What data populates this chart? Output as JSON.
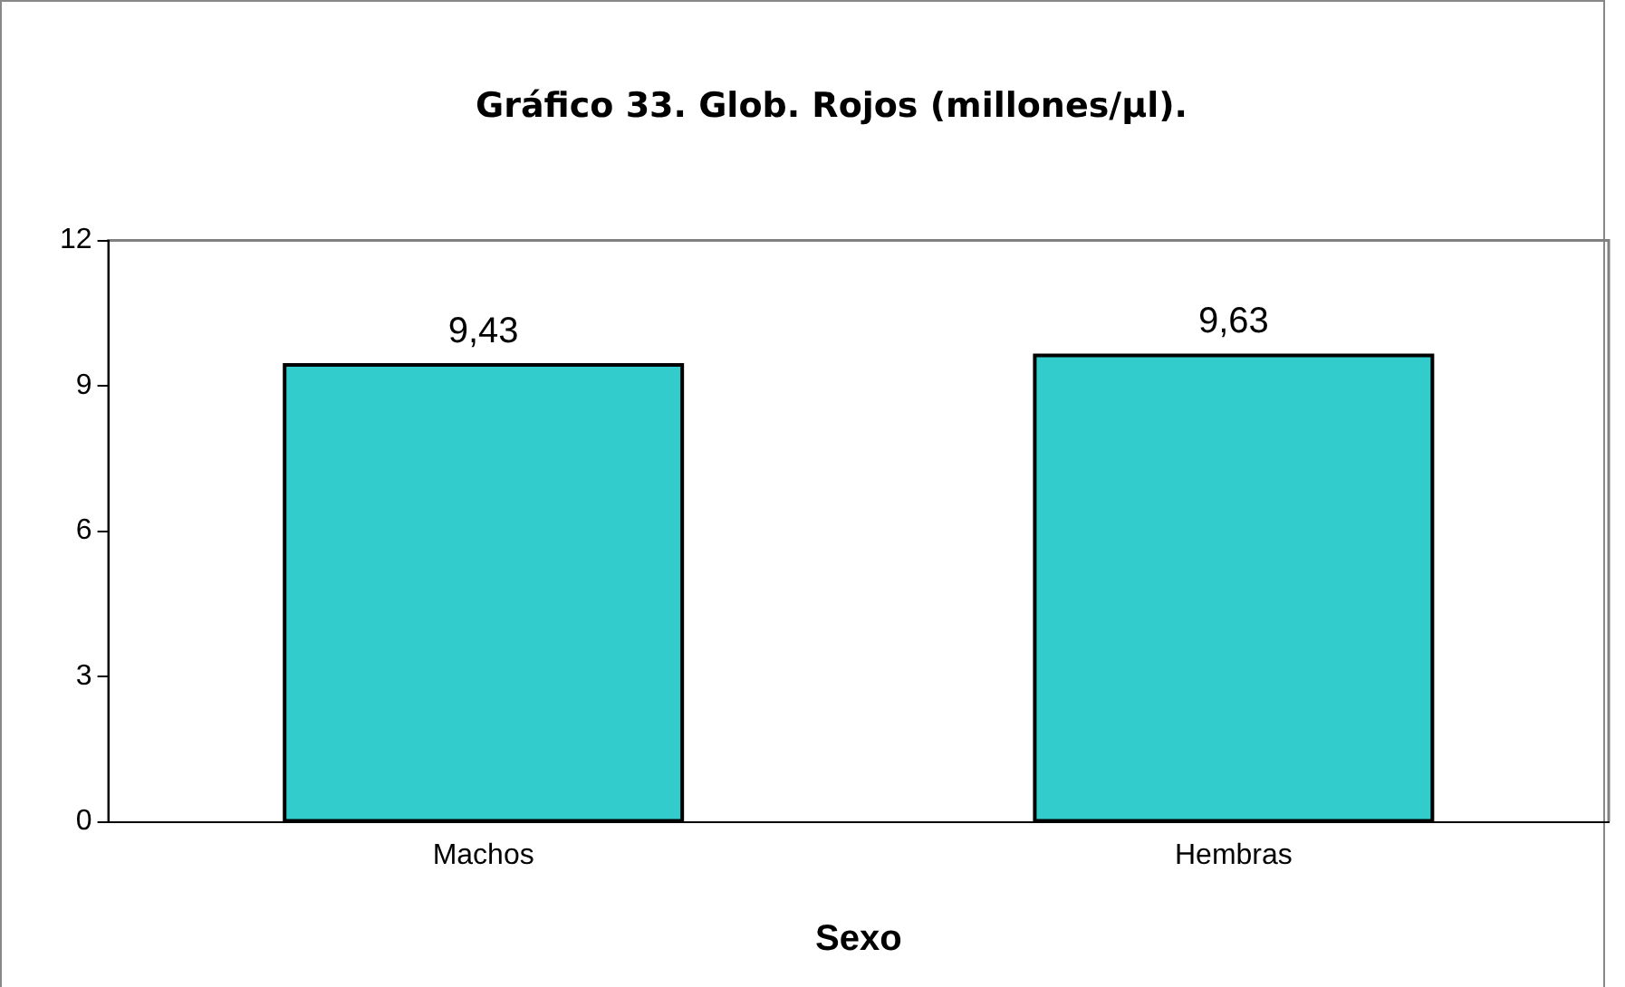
{
  "chart_data": {
    "type": "bar",
    "title": "Gráfico 33. Glob. Rojos (millones/µl).",
    "xlabel": "Sexo",
    "categories": [
      "Machos",
      "Hembras"
    ],
    "values": [
      9.43,
      9.63
    ],
    "color": "#33cccc",
    "value_labels": [
      "9,43",
      "9,63"
    ],
    "ylim": [
      0,
      12
    ],
    "yticks": [
      0,
      3,
      6,
      9,
      12
    ],
    "grid": false,
    "legend": false
  }
}
